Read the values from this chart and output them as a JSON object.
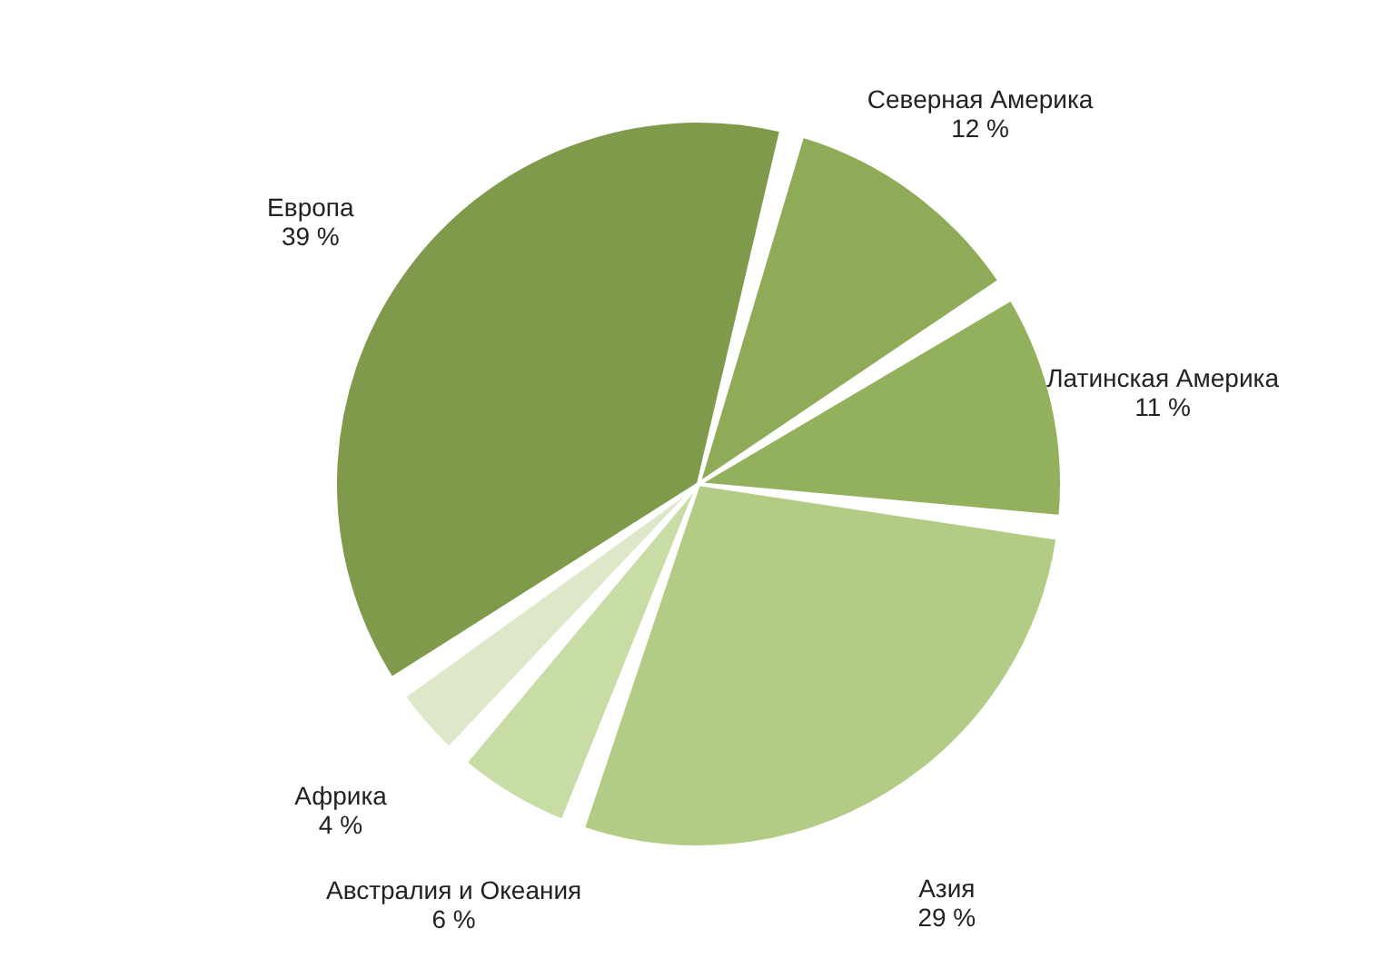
{
  "chart_data": {
    "type": "pie",
    "categories": [
      "Северная Америка",
      "Латинская Америка",
      "Азия",
      "Австралия и Океания",
      "Африка",
      "Европа"
    ],
    "values": [
      12,
      11,
      29,
      6,
      4,
      39
    ],
    "value_labels": [
      "12 %",
      "11 %",
      "29 %",
      "6 %",
      "4 %",
      "39 %"
    ],
    "colors": [
      "#8fab58",
      "#93b05c",
      "#b2cc85",
      "#c8dca6",
      "#dde8c8",
      "#7f9a4a"
    ]
  }
}
